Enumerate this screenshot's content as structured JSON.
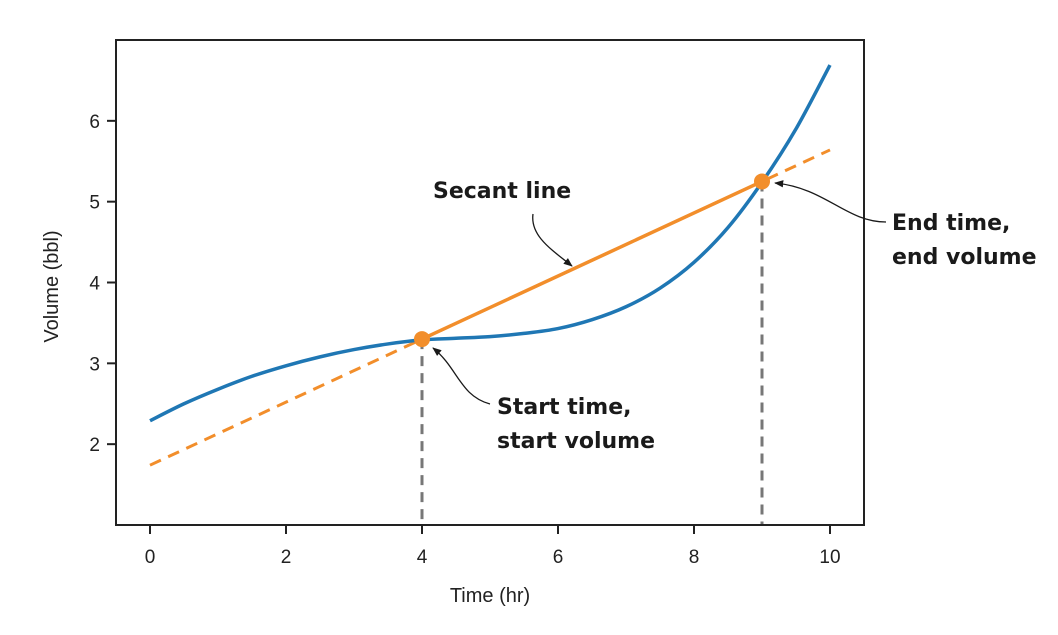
{
  "chart_data": {
    "type": "line",
    "title": "",
    "xlabel": "Time (hr)",
    "ylabel": "Volume (bbl)",
    "xlim": [
      -0.5,
      10.5
    ],
    "ylim": [
      1.0,
      7.0
    ],
    "xticks": [
      0,
      2,
      4,
      6,
      8,
      10
    ],
    "yticks": [
      2,
      3,
      4,
      5,
      6
    ],
    "grid": false,
    "legend": "none",
    "series": [
      {
        "kind": "curve",
        "color": "#1f77b4",
        "x": [
          0,
          0.5,
          1,
          1.5,
          2,
          2.5,
          3,
          3.5,
          4,
          4.5,
          5,
          5.5,
          6,
          6.5,
          7,
          7.5,
          8,
          8.5,
          9,
          9.5,
          10
        ],
        "y": [
          2.29,
          2.5,
          2.68,
          2.84,
          2.97,
          3.08,
          3.17,
          3.24,
          3.29,
          3.31,
          3.33,
          3.37,
          3.43,
          3.54,
          3.7,
          3.93,
          4.25,
          4.68,
          5.24,
          5.9,
          6.69
        ]
      },
      {
        "kind": "secant",
        "color": "#f28e2b",
        "x": [
          4,
          9
        ],
        "y": [
          3.3,
          5.25
        ]
      },
      {
        "kind": "secant-extension",
        "color": "#f28e2b",
        "style": "dashed",
        "x": [
          0,
          10
        ],
        "y": [
          1.74,
          5.64
        ]
      }
    ],
    "points": [
      {
        "x": 4,
        "y": 3.3,
        "color": "#f28e2b"
      },
      {
        "x": 9,
        "y": 5.25,
        "color": "#f28e2b"
      }
    ],
    "drop_lines": [
      {
        "x": 4,
        "y": 3.3,
        "color": "#777777"
      },
      {
        "x": 9,
        "y": 5.25,
        "color": "#777777"
      }
    ],
    "annotations": [
      {
        "lines": [
          "Secant line"
        ]
      },
      {
        "lines": [
          "Start time,",
          "start volume"
        ]
      },
      {
        "lines": [
          "End time,",
          "end volume"
        ]
      }
    ]
  }
}
